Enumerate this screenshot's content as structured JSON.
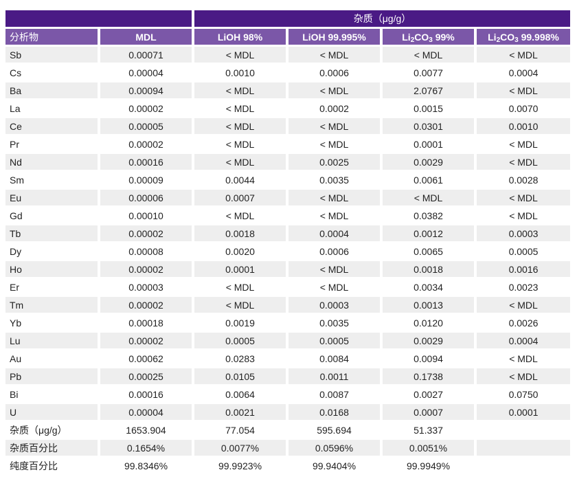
{
  "group_header": "杂质（μg/g）",
  "columns": [
    {
      "segments": [
        {
          "t": "分析物"
        }
      ]
    },
    {
      "segments": [
        {
          "t": "MDL"
        }
      ]
    },
    {
      "segments": [
        {
          "t": "LiOH 98%"
        }
      ]
    },
    {
      "segments": [
        {
          "t": "LiOH 99.995%"
        }
      ]
    },
    {
      "segments": [
        {
          "t": "Li"
        },
        {
          "t": "2",
          "sub": true
        },
        {
          "t": "CO"
        },
        {
          "t": "3",
          "sub": true
        },
        {
          "t": " 99%"
        }
      ]
    },
    {
      "segments": [
        {
          "t": "Li"
        },
        {
          "t": "2",
          "sub": true
        },
        {
          "t": "CO"
        },
        {
          "t": "3",
          "sub": true
        },
        {
          "t": " 99.998%"
        }
      ]
    }
  ],
  "rows": [
    [
      "Sb",
      "0.00071",
      "< MDL",
      "< MDL",
      "< MDL",
      "< MDL"
    ],
    [
      "Cs",
      "0.00004",
      "0.0010",
      "0.0006",
      "0.0077",
      "0.0004"
    ],
    [
      "Ba",
      "0.00094",
      "< MDL",
      "< MDL",
      "2.0767",
      "< MDL"
    ],
    [
      "La",
      "0.00002",
      "< MDL",
      "0.0002",
      "0.0015",
      "0.0070"
    ],
    [
      "Ce",
      "0.00005",
      "< MDL",
      "< MDL",
      "0.0301",
      "0.0010"
    ],
    [
      "Pr",
      "0.00002",
      "< MDL",
      "< MDL",
      "0.0001",
      "< MDL"
    ],
    [
      "Nd",
      "0.00016",
      "< MDL",
      "0.0025",
      "0.0029",
      "< MDL"
    ],
    [
      "Sm",
      "0.00009",
      "0.0044",
      "0.0035",
      "0.0061",
      "0.0028"
    ],
    [
      "Eu",
      "0.00006",
      "0.0007",
      "< MDL",
      "< MDL",
      "< MDL"
    ],
    [
      "Gd",
      "0.00010",
      "< MDL",
      "< MDL",
      "0.0382",
      "< MDL"
    ],
    [
      "Tb",
      "0.00002",
      "0.0018",
      "0.0004",
      "0.0012",
      "0.0003"
    ],
    [
      "Dy",
      "0.00008",
      "0.0020",
      "0.0006",
      "0.0065",
      "0.0005"
    ],
    [
      "Ho",
      "0.00002",
      "0.0001",
      "< MDL",
      "0.0018",
      "0.0016"
    ],
    [
      "Er",
      "0.00003",
      "< MDL",
      "< MDL",
      "0.0034",
      "0.0023"
    ],
    [
      "Tm",
      "0.00002",
      "< MDL",
      "0.0003",
      "0.0013",
      "< MDL"
    ],
    [
      "Yb",
      "0.00018",
      "0.0019",
      "0.0035",
      "0.0120",
      "0.0026"
    ],
    [
      "Lu",
      "0.00002",
      "0.0005",
      "0.0005",
      "0.0029",
      "0.0004"
    ],
    [
      "Au",
      "0.00062",
      "0.0283",
      "0.0084",
      "0.0094",
      "< MDL"
    ],
    [
      "Pb",
      "0.00025",
      "0.0105",
      "0.0011",
      "0.1738",
      "< MDL"
    ],
    [
      "Bi",
      "0.00016",
      "0.0064",
      "0.0087",
      "0.0027",
      "0.0750"
    ],
    [
      "U",
      "0.00004",
      "0.0021",
      "0.0168",
      "0.0007",
      "0.0001"
    ],
    [
      "杂质（μg/g）",
      "1653.904",
      "77.054",
      "595.694",
      "51.337",
      ""
    ],
    [
      "杂质百分比",
      "0.1654%",
      "0.0077%",
      "0.0596%",
      "0.0051%",
      ""
    ],
    [
      "纯度百分比",
      "99.8346%",
      "99.9923%",
      "99.9404%",
      "99.9949%",
      ""
    ]
  ]
}
